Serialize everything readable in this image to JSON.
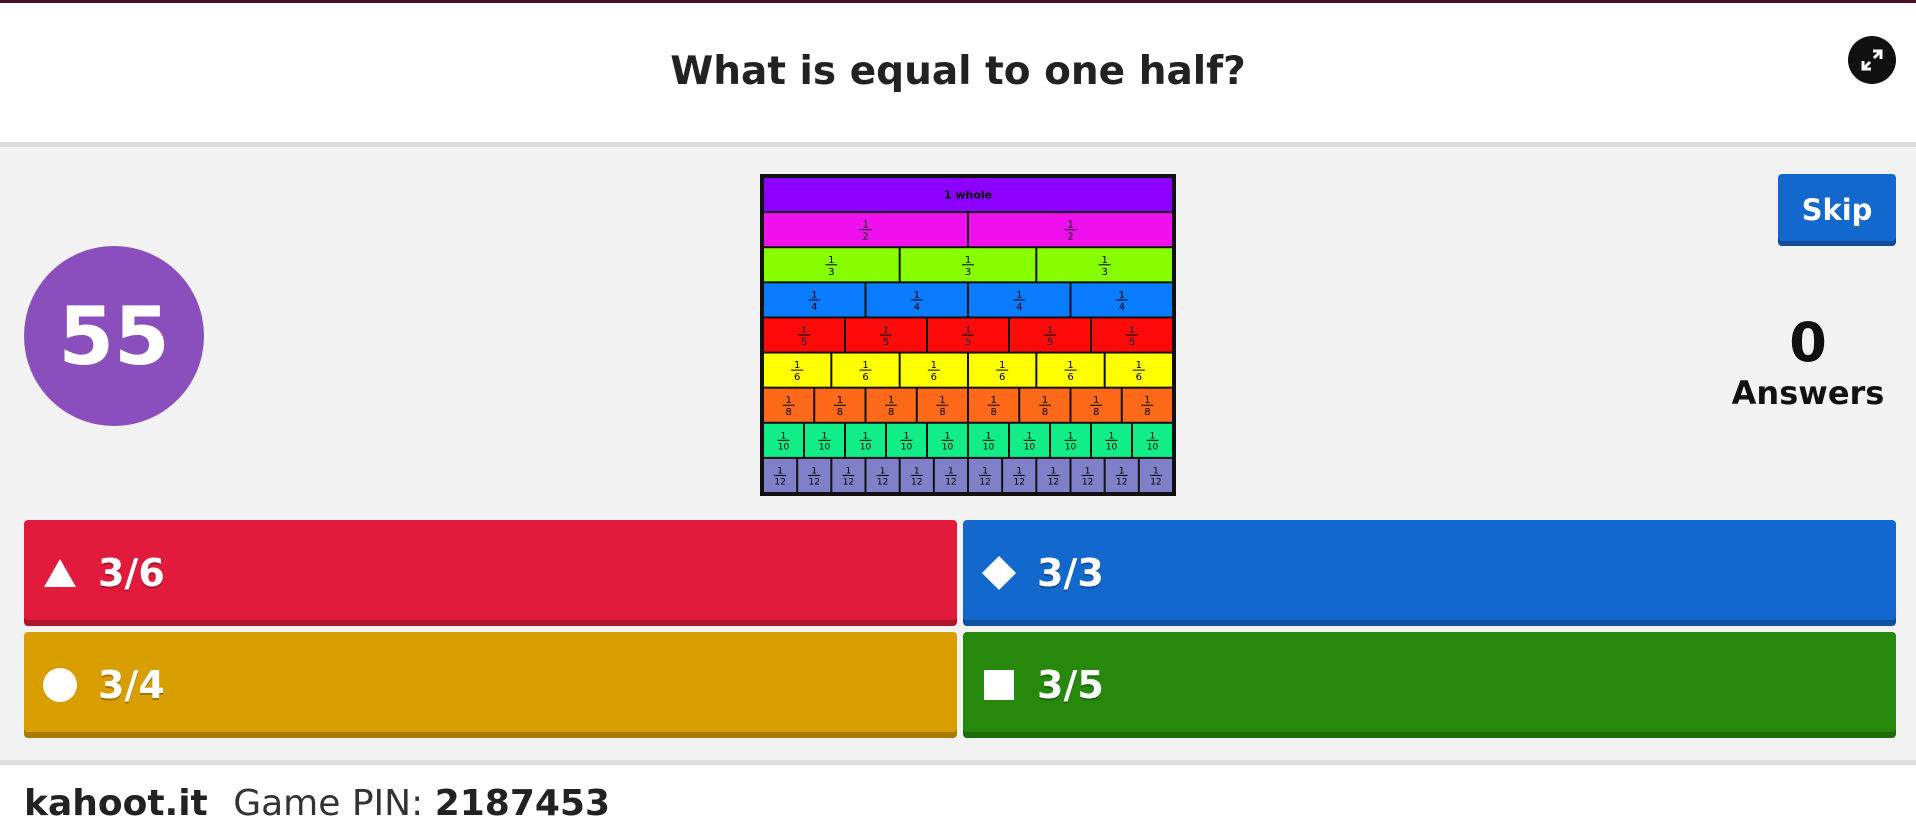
{
  "question": "What is equal to one half?",
  "timer": "55",
  "skip_label": "Skip",
  "answers_count": "0",
  "answers_label": "Answers",
  "fraction_image": {
    "whole_label": "1 whole",
    "denominators": [
      2,
      3,
      4,
      5,
      6,
      8,
      10,
      12
    ],
    "row_colors": [
      "#8b00ff",
      "#ee11ee",
      "#88ff00",
      "#0a7cff",
      "#ff0a0a",
      "#ffff00",
      "#ff6a1a",
      "#11ee88",
      "#8080c8"
    ]
  },
  "answers": [
    {
      "label": "3/6",
      "shape": "triangle-icon",
      "color": "#e21b3c"
    },
    {
      "label": "3/3",
      "shape": "diamond-icon",
      "color": "#1368ce"
    },
    {
      "label": "3/4",
      "shape": "circle-icon",
      "color": "#d89e00"
    },
    {
      "label": "3/5",
      "shape": "square-icon",
      "color": "#26890c"
    }
  ],
  "footer": {
    "brand": "kahoot.it",
    "pin_label": "Game PIN:",
    "pin": "2187453"
  }
}
